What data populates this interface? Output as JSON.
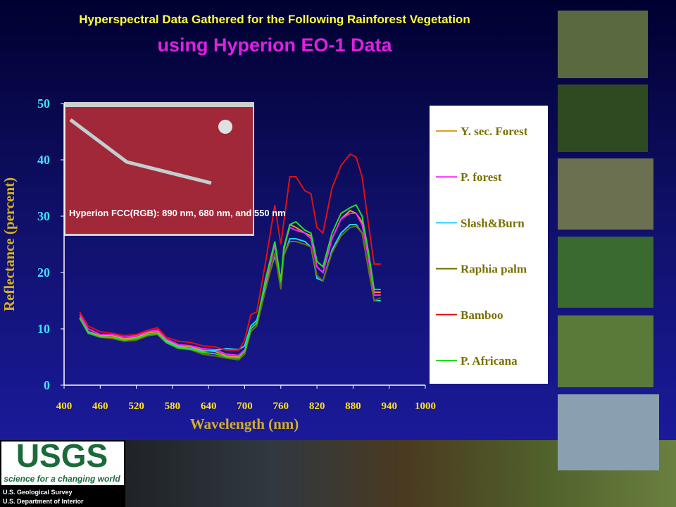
{
  "chart_data": {
    "type": "line",
    "title": "Hyperspectral Data Gathered for the Following  Rainforest Vegetation",
    "subtitle": "using Hyperion EO-1 Data",
    "x_label": "Wavelength (nm)",
    "y_label": "Reflectance (percent)",
    "annotations": [
      "Hyperion FCC(RGB): 890 nm, 680 nm, and 550 nm"
    ],
    "xlim": [
      400,
      1000
    ],
    "ylim": [
      0,
      50
    ],
    "xticks": [
      400,
      460,
      520,
      580,
      640,
      700,
      760,
      820,
      880,
      940,
      1000
    ],
    "yticks": [
      0,
      10,
      20,
      30,
      40,
      50
    ],
    "legend": "right",
    "x": [
      426,
      440,
      460,
      480,
      500,
      520,
      540,
      555,
      570,
      590,
      610,
      630,
      650,
      670,
      690,
      700,
      710,
      720,
      735,
      750,
      760,
      765,
      775,
      785,
      800,
      810,
      820,
      830,
      845,
      860,
      875,
      885,
      895,
      905,
      915,
      926
    ],
    "series": [
      {
        "name": "Y. sec. Forest",
        "color": "#e0a020",
        "values": [
          12,
          9.5,
          8.8,
          8.8,
          8.2,
          8.5,
          9.3,
          9.5,
          8,
          7,
          6.8,
          6.2,
          6,
          5.2,
          5,
          6,
          10,
          11,
          18,
          25,
          18,
          24,
          28.5,
          28,
          27,
          26.5,
          21,
          20,
          26,
          29.5,
          31,
          30.5,
          29,
          23,
          16.5,
          16.5
        ]
      },
      {
        "name": "P. forest",
        "color": "#ff20ff",
        "values": [
          12.5,
          10,
          9,
          9,
          8.5,
          8.8,
          9.5,
          9.8,
          8.2,
          7.2,
          7,
          6.5,
          6.3,
          5.5,
          5.3,
          6.3,
          10,
          11,
          18.5,
          25,
          18,
          24.5,
          28,
          27.5,
          27,
          26,
          21,
          20,
          26,
          29.5,
          30.5,
          30.5,
          28.5,
          23,
          16,
          16
        ]
      },
      {
        "name": "Slash&Burn",
        "color": "#20d0ff",
        "values": [
          12,
          9.5,
          8.5,
          8.5,
          8,
          8.2,
          9,
          9.2,
          7.8,
          6.8,
          6.5,
          6,
          6.2,
          6.5,
          6.3,
          7,
          10.5,
          11.5,
          17.5,
          23,
          18,
          23,
          26,
          26,
          25.5,
          24.5,
          19,
          18.5,
          24,
          27,
          28.5,
          28.5,
          27,
          21,
          15,
          15
        ]
      },
      {
        "name": "Raphia palm",
        "color": "#707000",
        "values": [
          11.8,
          9.2,
          8.5,
          8.3,
          7.8,
          8,
          8.8,
          9,
          7.5,
          6.5,
          6.3,
          5.5,
          5.2,
          4.8,
          4.5,
          5.5,
          9.5,
          10.5,
          17,
          23.5,
          17,
          23,
          25.5,
          25.5,
          25,
          24.5,
          19.5,
          18.5,
          23.5,
          26.5,
          28,
          28.2,
          27,
          21,
          15,
          15.5
        ]
      },
      {
        "name": "Bamboo",
        "color": "#e01010",
        "values": [
          13,
          10.5,
          9.5,
          9.2,
          8.8,
          9,
          9.8,
          10.2,
          8.5,
          7.8,
          7.6,
          7,
          6.8,
          6.2,
          6.2,
          8,
          12.5,
          13,
          22,
          32,
          25,
          29,
          37,
          37,
          34.5,
          34,
          28,
          27,
          35,
          39,
          41,
          40.5,
          37,
          29,
          21.5,
          21.5
        ]
      },
      {
        "name": "P. Africana",
        "color": "#20e020",
        "values": [
          12,
          9.3,
          8.6,
          8.5,
          8,
          8.3,
          9,
          9.2,
          7.6,
          6.6,
          6.4,
          5.8,
          5.6,
          5,
          4.8,
          6,
          10,
          11,
          19,
          25.5,
          18.5,
          24.5,
          28.5,
          29,
          27.5,
          27,
          22,
          21,
          27,
          30.5,
          31.5,
          32,
          30,
          24,
          17,
          17
        ]
      }
    ]
  },
  "footer": {
    "logo": "USGS",
    "tagline": "science for a changing world",
    "org1": "U.S. Geological Survey",
    "org2": "U.S. Department of Interior"
  }
}
